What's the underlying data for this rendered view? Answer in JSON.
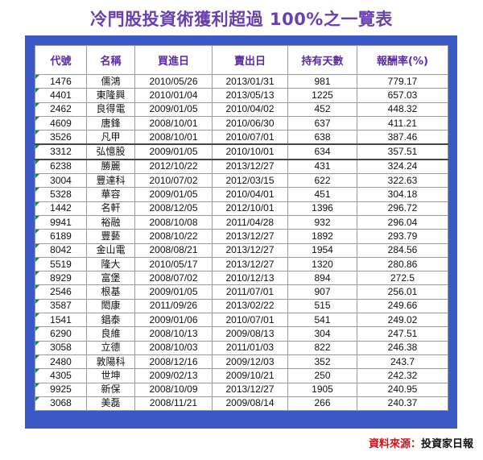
{
  "title": "冷門股投資術獲利超過 100%之一覽表",
  "headers": [
    "代號",
    "名稱",
    "買進日",
    "賣出日",
    "持有天數",
    "報酬率(%)"
  ],
  "rows": [
    [
      "1476",
      "儒鴻",
      "2010/05/26",
      "2013/01/31",
      "981",
      "779.17"
    ],
    [
      "4401",
      "東隆興",
      "2010/01/04",
      "2013/05/13",
      "1225",
      "657.03"
    ],
    [
      "2462",
      "良得電",
      "2009/01/05",
      "2010/04/02",
      "452",
      "448.32"
    ],
    [
      "4609",
      "唐鋒",
      "2008/10/01",
      "2010/06/30",
      "637",
      "411.21"
    ],
    [
      "3526",
      "凡甲",
      "2008/10/01",
      "2010/07/01",
      "638",
      "387.46"
    ],
    [
      "3312",
      "弘憶股",
      "2009/01/05",
      "2010/10/01",
      "634",
      "357.51"
    ],
    [
      "6238",
      "勝麗",
      "2012/10/22",
      "2013/12/27",
      "431",
      "324.24"
    ],
    [
      "3004",
      "豐達科",
      "2010/07/02",
      "2012/03/15",
      "622",
      "322.63"
    ],
    [
      "5328",
      "華容",
      "2009/01/05",
      "2010/04/01",
      "451",
      "304.18"
    ],
    [
      "1442",
      "名軒",
      "2008/12/05",
      "2012/10/01",
      "1396",
      "296.72"
    ],
    [
      "9941",
      "裕融",
      "2008/10/08",
      "2011/04/28",
      "932",
      "296.04"
    ],
    [
      "6189",
      "豐藝",
      "2008/10/22",
      "2013/12/27",
      "1892",
      "293.79"
    ],
    [
      "8042",
      "金山電",
      "2008/08/21",
      "2013/12/27",
      "1954",
      "284.56"
    ],
    [
      "5519",
      "隆大",
      "2010/05/17",
      "2013/12/27",
      "1320",
      "280.86"
    ],
    [
      "8929",
      "富堡",
      "2008/07/02",
      "2010/12/13",
      "894",
      "272.5"
    ],
    [
      "2546",
      "根基",
      "2009/01/05",
      "2011/07/01",
      "907",
      "256.01"
    ],
    [
      "3587",
      "閎康",
      "2011/09/26",
      "2013/02/22",
      "515",
      "249.66"
    ],
    [
      "1541",
      "錩泰",
      "2009/01/06",
      "2010/07/01",
      "541",
      "249.02"
    ],
    [
      "6290",
      "良維",
      "2008/10/13",
      "2009/08/13",
      "304",
      "247.51"
    ],
    [
      "3058",
      "立德",
      "2008/10/03",
      "2011/01/03",
      "822",
      "246.38"
    ],
    [
      "2480",
      "敦陽科",
      "2008/12/16",
      "2009/12/03",
      "352",
      "243.7"
    ],
    [
      "4305",
      "世坤",
      "2009/02/13",
      "2009/10/21",
      "250",
      "242.32"
    ],
    [
      "9925",
      "新保",
      "2008/10/09",
      "2013/12/27",
      "1905",
      "240.95"
    ],
    [
      "3068",
      "美磊",
      "2008/11/21",
      "2009/08/14",
      "266",
      "240.37"
    ]
  ],
  "source": {
    "label": "資料來源：",
    "value": "投資家日報"
  },
  "colors": {
    "title": "#6a3fb0",
    "frame": "#3b58c4",
    "header_text": "#5b2aa8",
    "source_label": "#d4121b"
  }
}
